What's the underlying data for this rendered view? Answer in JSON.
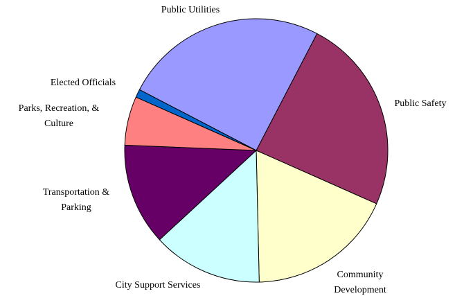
{
  "chart_data": {
    "type": "pie",
    "categories": [
      "Public Safety",
      "Community Development",
      "City Support Services",
      "Transportation & Parking",
      "Parks, Recreation, & Culture",
      "Elected Officials",
      "Public Utilities"
    ],
    "values": [
      24,
      18,
      13.5,
      12.5,
      6,
      1,
      25
    ],
    "colors": [
      "#993366",
      "#ffffcc",
      "#ccffff",
      "#660066",
      "#ff8080",
      "#0066cc",
      "#9999ff"
    ]
  }
}
